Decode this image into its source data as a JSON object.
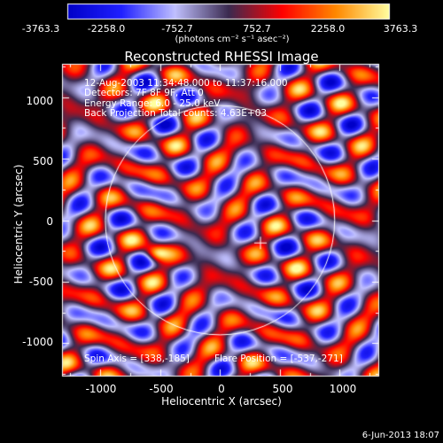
{
  "colorbar": {
    "ticks": [
      "-3763.3",
      "-2258.0",
      "-752.7",
      "752.7",
      "2258.0",
      "3763.3"
    ],
    "units": "(photons cm⁻² s⁻¹ asec⁻²)",
    "colors": [
      "#0000c8",
      "#2020ff",
      "#c0c0ff",
      "#3a2a50",
      "#ff0000",
      "#ff8800",
      "#ffffa0"
    ]
  },
  "title": "Reconstructed RHESSI Image",
  "annotations": {
    "time": "12-Aug-2003 11:34:48.000 to 11:37:16.000",
    "detectors": "Detectors: 7F 8F 9F, Att 0",
    "energy": "Energy Range: 6.0 - 25.0 keV",
    "method": "Back Projection    Total counts: 4.63E+03",
    "spin_axis": "Spin Axis = [338,-185]",
    "flare_position": "Flare Position = [-537,-271]"
  },
  "axes": {
    "xlabel": "Heliocentric X (arcsec)",
    "ylabel": "Heliocentric Y (arcsec)",
    "xticks": [
      "-1000",
      "-500",
      "0",
      "500",
      "1000"
    ],
    "yticks": [
      "1000",
      "500",
      "0",
      "-500",
      "-1000"
    ],
    "xrange": [
      -1320,
      1330
    ],
    "yrange": [
      -1270,
      1270
    ]
  },
  "footer": "6-Jun-2013 18:07"
}
